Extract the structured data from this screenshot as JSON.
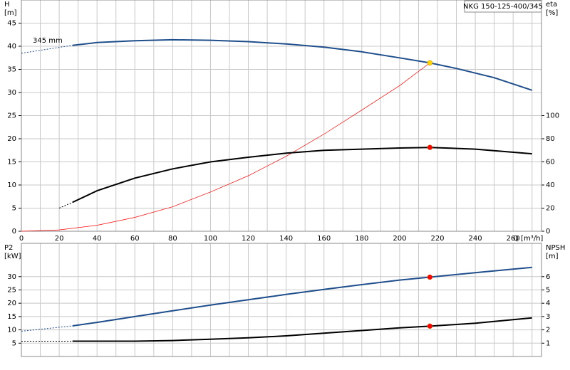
{
  "chart_data": [
    {
      "type": "line",
      "title": "NKG 150-125-400/345",
      "annotation": "345 mm",
      "y_label": "H",
      "y_unit": "[m]",
      "y2_label": "eta",
      "y2_unit": "[%]",
      "x_label": "Q [m³/h]",
      "xlim": [
        0,
        275
      ],
      "xticks": [
        0,
        20,
        40,
        60,
        80,
        100,
        120,
        140,
        160,
        180,
        200,
        220,
        240,
        260
      ],
      "xgrid": [
        10,
        30,
        50,
        70,
        90,
        110,
        130,
        150,
        170,
        190,
        210,
        230,
        250,
        270
      ],
      "ylim": [
        0,
        50
      ],
      "yticks": [
        0,
        5,
        10,
        15,
        20,
        25,
        30,
        35,
        40,
        45
      ],
      "y2lim": [
        0,
        200
      ],
      "y2ticks": [
        0,
        20,
        40,
        60,
        80,
        100
      ],
      "grid": true,
      "series": [
        {
          "color": "#1f4e8c",
          "dashed": true,
          "width": 1,
          "axis": "y",
          "x": [
            0,
            27
          ],
          "values": [
            38.5,
            40.2
          ]
        },
        {
          "color": "#1f4e8c",
          "dashed": false,
          "width": 2,
          "axis": "y",
          "x": [
            27,
            40,
            60,
            80,
            100,
            120,
            140,
            160,
            180,
            200,
            216,
            230,
            250,
            270
          ],
          "values": [
            40.2,
            40.8,
            41.2,
            41.4,
            41.3,
            41.0,
            40.5,
            39.8,
            38.8,
            37.5,
            36.4,
            35.2,
            33.2,
            30.5
          ]
        },
        {
          "color": "#ff0000",
          "dashed": false,
          "width": 0.7,
          "axis": "y",
          "x": [
            0,
            20,
            40,
            60,
            80,
            100,
            120,
            140,
            160,
            180,
            200,
            216
          ],
          "values": [
            0,
            0.3,
            1.3,
            3.0,
            5.3,
            8.5,
            12.0,
            16.2,
            21.0,
            26.2,
            31.5,
            36.4
          ]
        },
        {
          "color": "#000000",
          "dashed": true,
          "width": 1,
          "axis": "y2",
          "x": [
            20,
            27
          ],
          "values": [
            20,
            25
          ]
        },
        {
          "color": "#000000",
          "dashed": false,
          "width": 2,
          "axis": "y2",
          "x": [
            27,
            40,
            60,
            80,
            100,
            120,
            140,
            160,
            180,
            200,
            216,
            240,
            270
          ],
          "values": [
            25,
            35,
            46,
            54,
            60,
            64,
            67.5,
            70,
            71,
            72,
            72.5,
            71,
            67
          ]
        }
      ],
      "markers": [
        {
          "x": 216,
          "y": 36.4,
          "axis": "y",
          "color": "#ffd400"
        },
        {
          "x": 216,
          "y": 72.5,
          "axis": "y2",
          "color": "#ff0000"
        }
      ]
    },
    {
      "type": "line",
      "y_label": "P2",
      "y_unit": "[kW]",
      "y2_label": "NPSH",
      "y2_unit": "[m]",
      "xlim": [
        0,
        275
      ],
      "xgrid": [
        0,
        10,
        20,
        30,
        40,
        50,
        60,
        70,
        80,
        90,
        100,
        110,
        120,
        130,
        140,
        150,
        160,
        170,
        180,
        190,
        200,
        210,
        220,
        230,
        240,
        250,
        260,
        270
      ],
      "ylim": [
        0,
        42.5
      ],
      "yticks": [
        5,
        10,
        15,
        20,
        25,
        30
      ],
      "y2lim": [
        0,
        8.5
      ],
      "y2ticks": [
        1,
        2,
        3,
        4,
        5,
        6
      ],
      "grid": true,
      "series": [
        {
          "color": "#1f4e8c",
          "dashed": true,
          "width": 1,
          "axis": "y",
          "x": [
            0,
            27
          ],
          "values": [
            9.5,
            11.5
          ]
        },
        {
          "color": "#1f4e8c",
          "dashed": false,
          "width": 2,
          "axis": "y",
          "x": [
            27,
            40,
            60,
            80,
            100,
            120,
            140,
            160,
            180,
            200,
            216,
            240,
            270
          ],
          "values": [
            11.5,
            12.8,
            15,
            17.2,
            19.3,
            21.3,
            23.3,
            25.2,
            27,
            28.7,
            29.8,
            31.5,
            33.5
          ]
        },
        {
          "color": "#000000",
          "dashed": true,
          "width": 1,
          "axis": "y2",
          "x": [
            0,
            27
          ],
          "values": [
            1.15,
            1.15
          ]
        },
        {
          "color": "#000000",
          "dashed": false,
          "width": 2,
          "axis": "y2",
          "x": [
            27,
            60,
            80,
            100,
            120,
            140,
            160,
            180,
            200,
            216,
            240,
            270
          ],
          "values": [
            1.15,
            1.15,
            1.2,
            1.3,
            1.4,
            1.55,
            1.75,
            1.95,
            2.15,
            2.28,
            2.5,
            2.9
          ]
        }
      ],
      "markers": [
        {
          "x": 216,
          "y": 29.8,
          "axis": "y",
          "color": "#ff0000"
        },
        {
          "x": 216,
          "y": 2.28,
          "axis": "y2",
          "color": "#ff0000"
        }
      ]
    }
  ]
}
